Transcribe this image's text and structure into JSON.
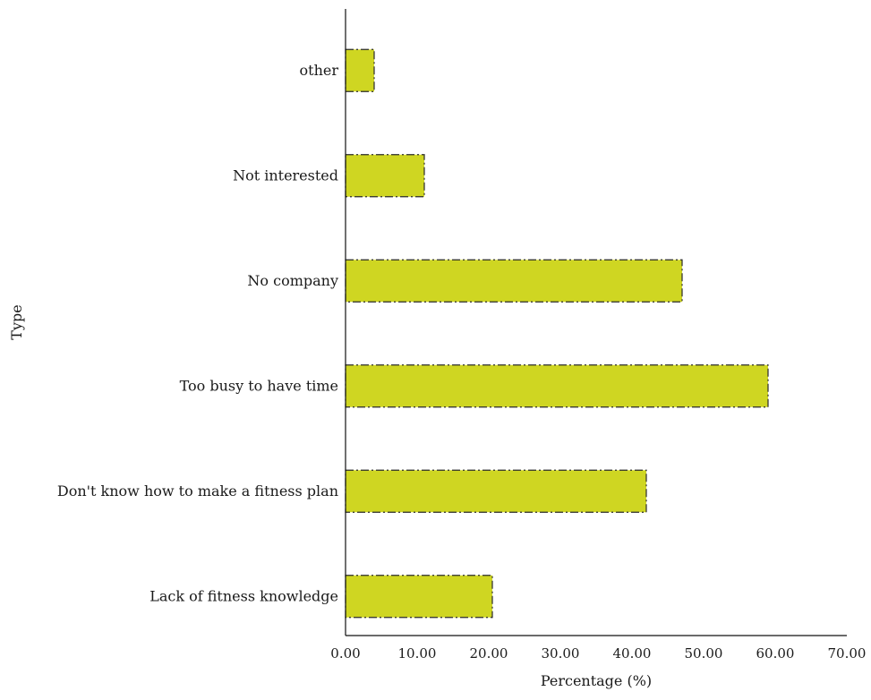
{
  "chart_data": {
    "type": "bar",
    "orientation": "horizontal",
    "categories": [
      "other",
      "Not interested",
      "No company",
      "Too busy to have time",
      "Don't know how to make a fitness plan",
      "Lack of fitness knowledge"
    ],
    "values": [
      4.0,
      11.0,
      47.0,
      59.0,
      42.0,
      20.5
    ],
    "xlabel": "Percentage (%)",
    "ylabel": "Type",
    "xlim": [
      0,
      70
    ],
    "xticks": [
      "0.00",
      "10.00",
      "20.00",
      "30.00",
      "40.00",
      "50.00",
      "60.00",
      "70.00"
    ],
    "grid": false,
    "legend": "none",
    "colors": {
      "bar_fill": "#cfd622",
      "bar_edge": "#2b2b2b",
      "axis": "#111111"
    }
  }
}
